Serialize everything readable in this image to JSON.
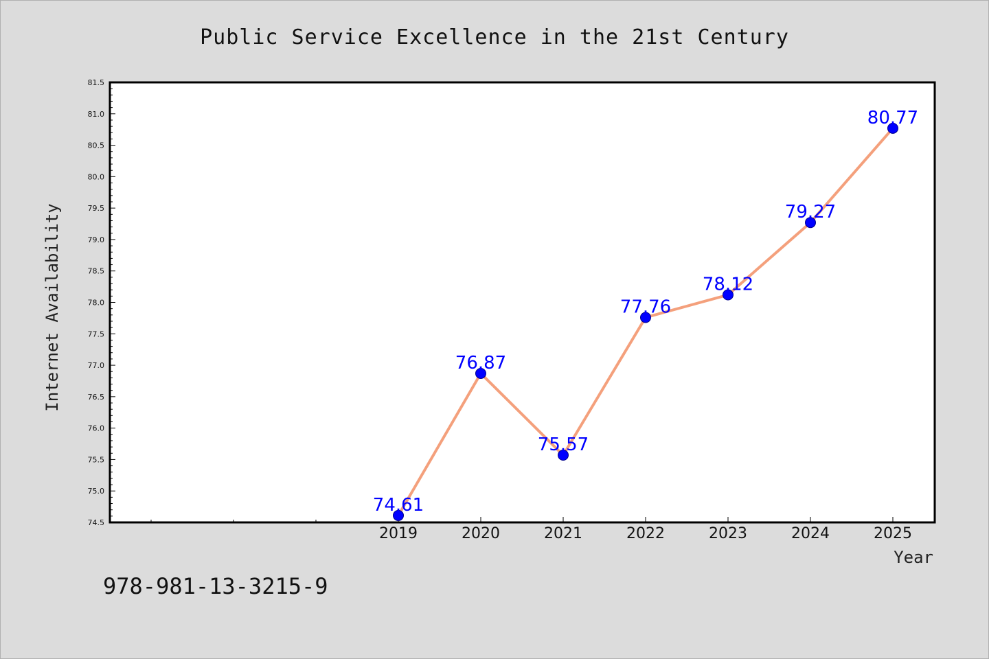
{
  "chart_data": {
    "type": "line",
    "title": "Public Service Excellence in the 21st Century",
    "xlabel": "Year",
    "ylabel": "Internet Availability",
    "x": [
      "2019",
      "2020",
      "2021",
      "2022",
      "2023",
      "2024",
      "2025"
    ],
    "values": [
      74.61,
      76.87,
      75.57,
      77.76,
      78.12,
      79.27,
      80.77
    ],
    "data_labels": [
      "74.61",
      "76.87",
      "75.57",
      "77.76",
      "78.12",
      "79.27",
      "80.77"
    ],
    "ylim": [
      74.5,
      81.5
    ],
    "yticks": [
      "74.5",
      "75.0",
      "75.5",
      "76.0",
      "76.5",
      "77.0",
      "77.5",
      "78.0",
      "78.5",
      "79.0",
      "79.5",
      "80.0",
      "80.5",
      "81.0",
      "81.5"
    ],
    "grid": false,
    "line_color": "#f4a07c",
    "marker_color": "#0000ff",
    "label_color": "#0000ff"
  },
  "footer": {
    "isbn": "978-981-13-3215-9"
  }
}
